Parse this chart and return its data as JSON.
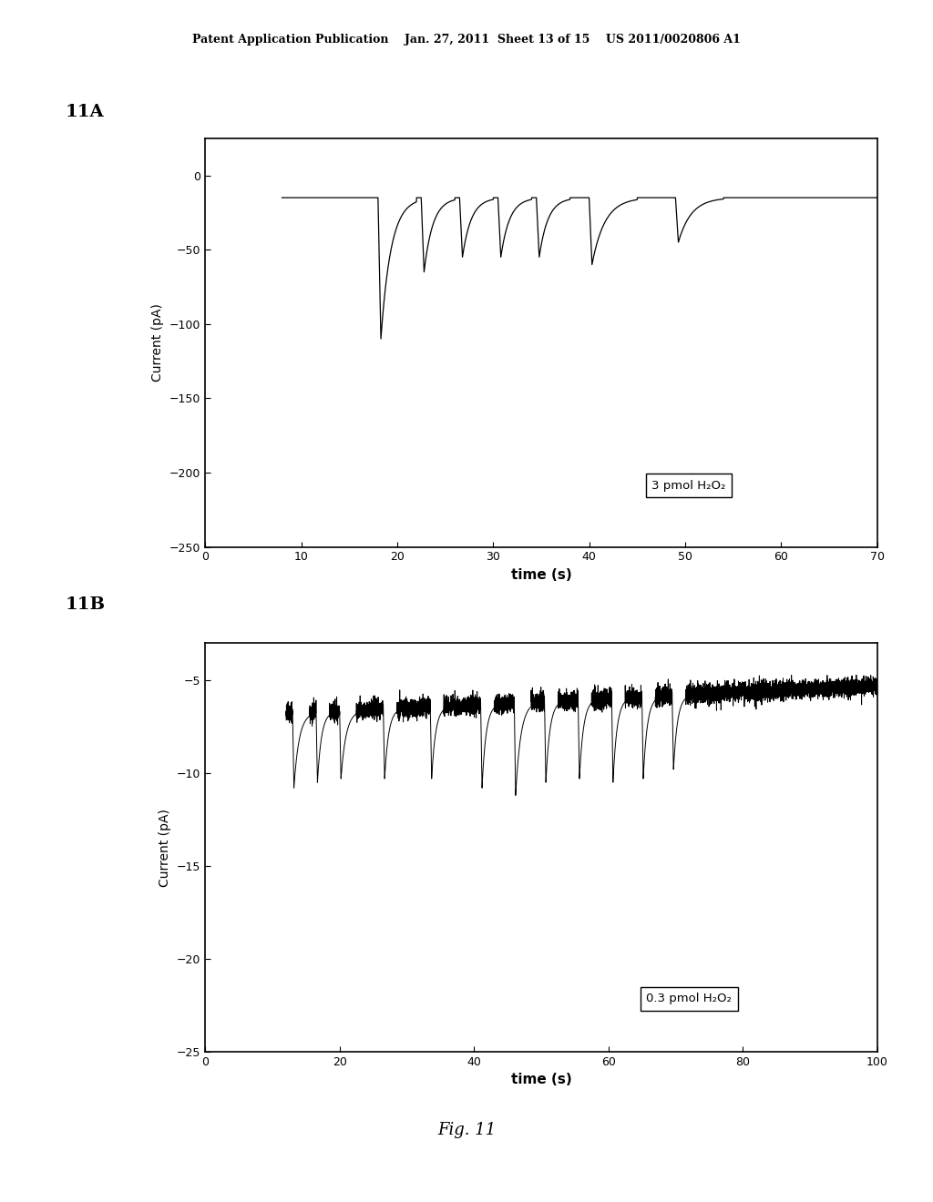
{
  "background_color": "#ffffff",
  "header_text": "Patent Application Publication    Jan. 27, 2011  Sheet 13 of 15    US 2011/0020806 A1",
  "label_11A": "11A",
  "label_11B": "11B",
  "fig_label": "Fig. 11",
  "plot_A": {
    "xlim": [
      0,
      70
    ],
    "ylim": [
      -250,
      25
    ],
    "xticks": [
      0,
      10,
      20,
      30,
      40,
      50,
      60,
      70
    ],
    "yticks": [
      0,
      -50,
      -100,
      -150,
      -200,
      -250
    ],
    "xlabel": "time (s)",
    "ylabel": "Current (pA)",
    "legend_text": "3 pmol H₂O₂",
    "baseline": -15,
    "signal_start": 8,
    "spikes": [
      {
        "t_drop": 18.0,
        "t_peak": 18.3,
        "peak": -110,
        "t_end": 22.0
      },
      {
        "t_drop": 22.5,
        "t_peak": 22.8,
        "peak": -65,
        "t_end": 26.0
      },
      {
        "t_drop": 26.5,
        "t_peak": 26.8,
        "peak": -55,
        "t_end": 30.0
      },
      {
        "t_drop": 30.5,
        "t_peak": 30.8,
        "peak": -55,
        "t_end": 34.0
      },
      {
        "t_drop": 34.5,
        "t_peak": 34.8,
        "peak": -55,
        "t_end": 38.0
      },
      {
        "t_drop": 40.0,
        "t_peak": 40.3,
        "peak": -60,
        "t_end": 45.0
      },
      {
        "t_drop": 49.0,
        "t_peak": 49.3,
        "peak": -45,
        "t_end": 54.0
      }
    ]
  },
  "plot_B": {
    "xlim": [
      0,
      100
    ],
    "ylim": [
      -25,
      -3
    ],
    "xticks": [
      0,
      20,
      40,
      60,
      80,
      100
    ],
    "yticks": [
      -5,
      -10,
      -15,
      -20,
      -25
    ],
    "xlabel": "time (s)",
    "ylabel": "Current (pA)",
    "legend_text": "0.3 pmol H₂O₂",
    "baseline": -6.8,
    "drift": 1.5,
    "noise_amplitude": 0.25,
    "signal_start": 12,
    "spikes": [
      {
        "t_drop": 13.0,
        "t_peak": 13.2,
        "peak": -10.8,
        "t_end": 15.5
      },
      {
        "t_drop": 16.5,
        "t_peak": 16.7,
        "peak": -10.5,
        "t_end": 18.5
      },
      {
        "t_drop": 20.0,
        "t_peak": 20.2,
        "peak": -10.3,
        "t_end": 22.5
      },
      {
        "t_drop": 26.5,
        "t_peak": 26.7,
        "peak": -10.3,
        "t_end": 28.5
      },
      {
        "t_drop": 33.5,
        "t_peak": 33.7,
        "peak": -10.3,
        "t_end": 35.5
      },
      {
        "t_drop": 41.0,
        "t_peak": 41.2,
        "peak": -10.8,
        "t_end": 43.0
      },
      {
        "t_drop": 46.0,
        "t_peak": 46.2,
        "peak": -11.2,
        "t_end": 48.5
      },
      {
        "t_drop": 50.5,
        "t_peak": 50.7,
        "peak": -10.5,
        "t_end": 52.5
      },
      {
        "t_drop": 55.5,
        "t_peak": 55.7,
        "peak": -10.3,
        "t_end": 57.5
      },
      {
        "t_drop": 60.5,
        "t_peak": 60.7,
        "peak": -10.5,
        "t_end": 62.5
      },
      {
        "t_drop": 65.0,
        "t_peak": 65.2,
        "peak": -10.3,
        "t_end": 67.0
      },
      {
        "t_drop": 69.5,
        "t_peak": 69.7,
        "peak": -9.8,
        "t_end": 71.5
      }
    ]
  }
}
